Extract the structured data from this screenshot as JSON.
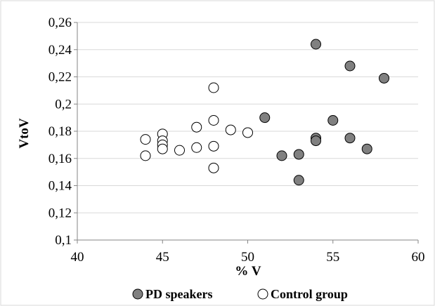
{
  "chart_data": {
    "type": "scatter",
    "title": "",
    "xlabel": "% V",
    "ylabel": "VtoV",
    "xlim": [
      40,
      60
    ],
    "ylim": [
      0.1,
      0.26
    ],
    "x_ticks": [
      40,
      45,
      50,
      55,
      60
    ],
    "x_tick_labels": [
      "40",
      "45",
      "50",
      "55",
      "60"
    ],
    "y_ticks": [
      0.1,
      0.12,
      0.14,
      0.16,
      0.18,
      0.2,
      0.22,
      0.24,
      0.26
    ],
    "y_tick_labels": [
      "0,1",
      "0,12",
      "0,14",
      "0,16",
      "0,18",
      "0,2",
      "0,22",
      "0,24",
      "0,26"
    ],
    "grid": "horizontal",
    "legend_position": "bottom",
    "series": [
      {
        "name": "PD speakers",
        "color": "#808080",
        "marker": "circle",
        "points": [
          {
            "x": 51,
            "y": 0.19
          },
          {
            "x": 52,
            "y": 0.162
          },
          {
            "x": 53,
            "y": 0.163
          },
          {
            "x": 53,
            "y": 0.144
          },
          {
            "x": 54,
            "y": 0.244
          },
          {
            "x": 54,
            "y": 0.175
          },
          {
            "x": 54,
            "y": 0.173
          },
          {
            "x": 55,
            "y": 0.188
          },
          {
            "x": 56,
            "y": 0.228
          },
          {
            "x": 56,
            "y": 0.175
          },
          {
            "x": 57,
            "y": 0.167
          },
          {
            "x": 58,
            "y": 0.219
          }
        ]
      },
      {
        "name": "Control group",
        "color": "#ffffff",
        "marker": "circle",
        "points": [
          {
            "x": 44,
            "y": 0.174
          },
          {
            "x": 44,
            "y": 0.162
          },
          {
            "x": 45,
            "y": 0.178
          },
          {
            "x": 45,
            "y": 0.173
          },
          {
            "x": 45,
            "y": 0.17
          },
          {
            "x": 45,
            "y": 0.167
          },
          {
            "x": 46,
            "y": 0.166
          },
          {
            "x": 47,
            "y": 0.183
          },
          {
            "x": 47,
            "y": 0.168
          },
          {
            "x": 48,
            "y": 0.212
          },
          {
            "x": 48,
            "y": 0.188
          },
          {
            "x": 48,
            "y": 0.169
          },
          {
            "x": 48,
            "y": 0.153
          },
          {
            "x": 49,
            "y": 0.181
          },
          {
            "x": 50,
            "y": 0.179
          }
        ]
      }
    ]
  }
}
